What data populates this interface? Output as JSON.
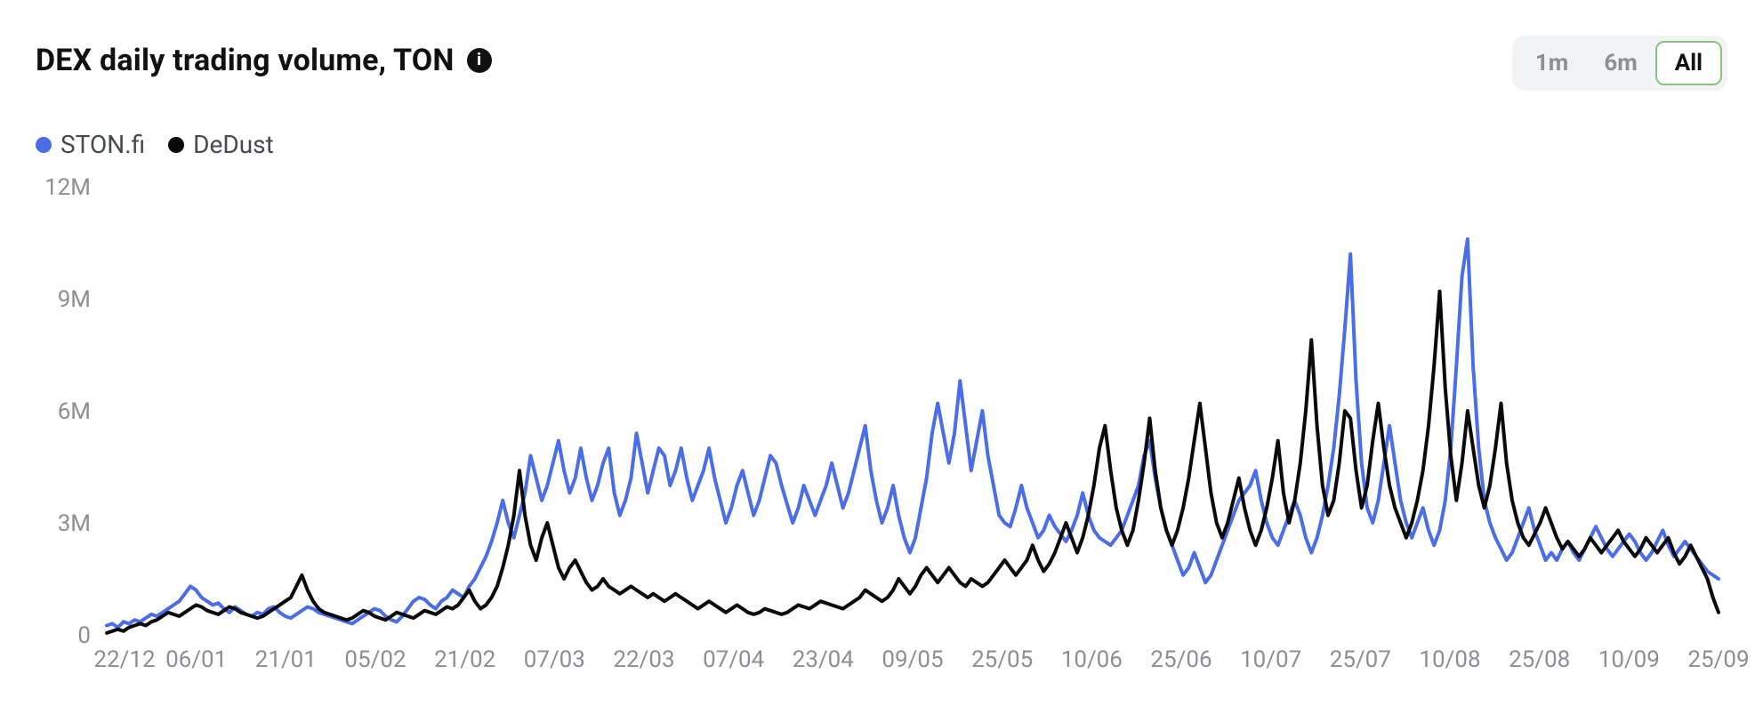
{
  "title": "DEX daily trading volume, TON",
  "info_tooltip": "i",
  "range_switch": {
    "options": [
      "1m",
      "6m",
      "All"
    ],
    "active": "All"
  },
  "legend": [
    {
      "key": "stonfi",
      "label": "STON.fi",
      "color": "#4b6ee8"
    },
    {
      "key": "dedust",
      "label": "DeDust",
      "color": "#0a0a0a"
    }
  ],
  "chart": {
    "type": "line",
    "background_color": "#ffffff",
    "line_width": 4,
    "y": {
      "min": 0,
      "max": 12000000,
      "ticks": [
        0,
        3000000,
        6000000,
        9000000,
        12000000
      ],
      "tick_labels": [
        "0",
        "3M",
        "6M",
        "9M",
        "12M"
      ],
      "label_color": "#8b8f94",
      "label_fontsize": 26
    },
    "x": {
      "tick_labels": [
        "22/12",
        "06/01",
        "21/01",
        "05/02",
        "21/02",
        "07/03",
        "22/03",
        "07/04",
        "23/04",
        "09/05",
        "25/05",
        "10/06",
        "25/06",
        "10/07",
        "25/07",
        "10/08",
        "25/08",
        "10/09",
        "25/09"
      ],
      "n_points": 290,
      "label_color": "#8b8f94",
      "label_fontsize": 26
    },
    "series": {
      "stonfi": [
        0.25,
        0.3,
        0.2,
        0.35,
        0.3,
        0.4,
        0.35,
        0.45,
        0.55,
        0.5,
        0.6,
        0.7,
        0.8,
        0.9,
        1.1,
        1.3,
        1.2,
        1.0,
        0.9,
        0.8,
        0.85,
        0.7,
        0.6,
        0.75,
        0.65,
        0.55,
        0.5,
        0.6,
        0.55,
        0.7,
        0.75,
        0.6,
        0.5,
        0.45,
        0.55,
        0.65,
        0.75,
        0.7,
        0.6,
        0.55,
        0.5,
        0.45,
        0.4,
        0.35,
        0.3,
        0.4,
        0.5,
        0.6,
        0.7,
        0.65,
        0.5,
        0.4,
        0.35,
        0.5,
        0.7,
        0.9,
        1.0,
        0.95,
        0.8,
        0.7,
        0.9,
        1.0,
        1.2,
        1.1,
        1.0,
        1.3,
        1.5,
        1.8,
        2.1,
        2.5,
        3.0,
        3.6,
        3.0,
        2.6,
        3.2,
        3.8,
        4.8,
        4.2,
        3.6,
        4.0,
        4.6,
        5.2,
        4.4,
        3.8,
        4.2,
        5.0,
        4.2,
        3.6,
        4.0,
        4.6,
        5.0,
        3.8,
        3.2,
        3.6,
        4.2,
        5.4,
        4.6,
        3.8,
        4.4,
        5.0,
        4.8,
        4.0,
        4.4,
        5.0,
        4.2,
        3.6,
        4.0,
        4.4,
        5.0,
        4.2,
        3.6,
        3.0,
        3.4,
        4.0,
        4.4,
        3.8,
        3.2,
        3.6,
        4.2,
        4.8,
        4.6,
        4.0,
        3.5,
        3.0,
        3.4,
        4.0,
        3.6,
        3.2,
        3.6,
        4.0,
        4.6,
        4.0,
        3.4,
        3.8,
        4.4,
        5.0,
        5.6,
        4.4,
        3.6,
        3.0,
        3.4,
        4.0,
        3.2,
        2.6,
        2.2,
        2.6,
        3.4,
        4.2,
        5.4,
        6.2,
        5.4,
        4.6,
        5.4,
        6.8,
        5.6,
        4.4,
        5.2,
        6.0,
        4.8,
        4.0,
        3.2,
        3.0,
        2.9,
        3.4,
        4.0,
        3.4,
        3.0,
        2.6,
        2.8,
        3.2,
        2.9,
        2.7,
        2.5,
        2.8,
        3.2,
        3.8,
        3.2,
        2.8,
        2.6,
        2.5,
        2.4,
        2.6,
        2.8,
        3.2,
        3.6,
        4.0,
        4.8,
        5.2,
        4.2,
        3.4,
        2.8,
        2.4,
        2.0,
        1.6,
        1.8,
        2.2,
        1.8,
        1.4,
        1.6,
        2.0,
        2.4,
        2.8,
        3.2,
        3.6,
        3.8,
        4.0,
        4.4,
        3.6,
        3.0,
        2.6,
        2.4,
        2.8,
        3.2,
        3.6,
        3.2,
        2.6,
        2.2,
        2.6,
        3.2,
        4.0,
        5.0,
        6.4,
        8.2,
        10.2,
        6.8,
        4.6,
        3.4,
        3.0,
        3.6,
        4.6,
        5.6,
        4.6,
        3.6,
        3.0,
        2.6,
        3.0,
        3.4,
        2.8,
        2.4,
        2.8,
        3.6,
        5.0,
        7.2,
        9.6,
        10.6,
        7.2,
        5.0,
        3.6,
        3.0,
        2.6,
        2.3,
        2.0,
        2.2,
        2.6,
        3.0,
        3.4,
        2.8,
        2.4,
        2.0,
        2.2,
        2.0,
        2.3,
        2.5,
        2.2,
        2.0,
        2.3,
        2.6,
        2.9,
        2.6,
        2.3,
        2.1,
        2.3,
        2.5,
        2.7,
        2.5,
        2.2,
        2.0,
        2.2,
        2.5,
        2.8,
        2.4,
        2.1,
        2.3,
        2.5,
        2.3,
        2.1,
        1.9,
        1.7,
        1.6,
        1.5
      ],
      "dedust": [
        0.05,
        0.1,
        0.15,
        0.1,
        0.2,
        0.25,
        0.3,
        0.25,
        0.35,
        0.4,
        0.5,
        0.6,
        0.55,
        0.5,
        0.6,
        0.7,
        0.8,
        0.75,
        0.65,
        0.6,
        0.55,
        0.65,
        0.75,
        0.7,
        0.6,
        0.55,
        0.5,
        0.45,
        0.5,
        0.6,
        0.7,
        0.8,
        0.9,
        1.0,
        1.3,
        1.6,
        1.2,
        0.9,
        0.7,
        0.6,
        0.55,
        0.5,
        0.45,
        0.4,
        0.45,
        0.55,
        0.65,
        0.6,
        0.5,
        0.45,
        0.4,
        0.5,
        0.6,
        0.55,
        0.5,
        0.45,
        0.55,
        0.65,
        0.6,
        0.55,
        0.65,
        0.75,
        0.7,
        0.8,
        1.0,
        1.2,
        0.9,
        0.7,
        0.8,
        1.0,
        1.3,
        1.8,
        2.4,
        3.2,
        4.4,
        3.2,
        2.4,
        2.0,
        2.6,
        3.0,
        2.4,
        1.8,
        1.5,
        1.8,
        2.0,
        1.7,
        1.4,
        1.2,
        1.3,
        1.5,
        1.3,
        1.2,
        1.1,
        1.2,
        1.3,
        1.2,
        1.1,
        1.0,
        1.1,
        1.0,
        0.9,
        1.0,
        1.1,
        1.0,
        0.9,
        0.8,
        0.7,
        0.8,
        0.9,
        0.8,
        0.7,
        0.6,
        0.7,
        0.8,
        0.7,
        0.6,
        0.55,
        0.6,
        0.7,
        0.65,
        0.6,
        0.55,
        0.6,
        0.7,
        0.8,
        0.75,
        0.7,
        0.8,
        0.9,
        0.85,
        0.8,
        0.75,
        0.7,
        0.8,
        0.9,
        1.0,
        1.2,
        1.1,
        1.0,
        0.9,
        1.0,
        1.2,
        1.5,
        1.3,
        1.1,
        1.3,
        1.6,
        1.8,
        1.6,
        1.4,
        1.6,
        1.8,
        1.6,
        1.4,
        1.3,
        1.5,
        1.4,
        1.3,
        1.4,
        1.6,
        1.8,
        2.0,
        1.8,
        1.6,
        1.8,
        2.0,
        2.4,
        2.0,
        1.7,
        1.9,
        2.2,
        2.6,
        3.0,
        2.6,
        2.2,
        2.6,
        3.2,
        4.0,
        5.0,
        5.6,
        4.4,
        3.4,
        2.8,
        2.4,
        2.8,
        3.6,
        4.6,
        5.8,
        4.4,
        3.4,
        2.8,
        2.4,
        2.8,
        3.4,
        4.2,
        5.2,
        6.2,
        5.0,
        3.8,
        3.0,
        2.6,
        3.0,
        3.6,
        4.2,
        3.4,
        2.8,
        2.4,
        2.8,
        3.4,
        4.2,
        5.2,
        3.8,
        3.0,
        3.6,
        4.6,
        6.0,
        7.9,
        5.6,
        4.0,
        3.2,
        3.6,
        4.6,
        6.0,
        5.8,
        4.4,
        3.4,
        4.0,
        5.2,
        6.2,
        5.0,
        4.0,
        3.4,
        3.0,
        2.6,
        3.0,
        3.6,
        4.4,
        5.6,
        7.2,
        9.2,
        6.6,
        4.8,
        3.6,
        4.6,
        6.0,
        5.0,
        4.0,
        3.4,
        4.0,
        5.0,
        6.2,
        4.6,
        3.6,
        3.0,
        2.6,
        2.4,
        2.7,
        3.0,
        3.4,
        3.0,
        2.6,
        2.3,
        2.5,
        2.3,
        2.1,
        2.3,
        2.6,
        2.4,
        2.2,
        2.4,
        2.6,
        2.8,
        2.5,
        2.3,
        2.1,
        2.3,
        2.6,
        2.4,
        2.2,
        2.4,
        2.6,
        2.2,
        1.9,
        2.1,
        2.4,
        2.1,
        1.8,
        1.5,
        1.0,
        0.6
      ]
    }
  }
}
